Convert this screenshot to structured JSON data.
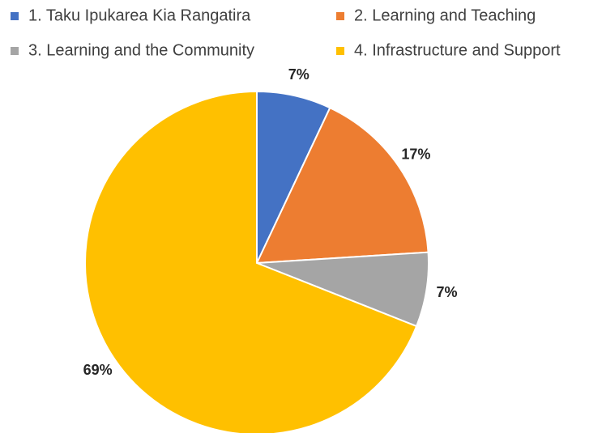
{
  "chart_data": {
    "type": "pie",
    "categories": [
      "1. Taku Ipukarea Kia Rangatira",
      "2. Learning and Teaching",
      "3. Learning and the Community",
      "4. Infrastructure and Support"
    ],
    "values": [
      7,
      17,
      7,
      69
    ],
    "value_labels": [
      "7%",
      "17%",
      "7%",
      "69%"
    ],
    "colors": [
      "#4472c4",
      "#ed7d31",
      "#a5a5a5",
      "#ffc000"
    ],
    "legend": "top"
  }
}
